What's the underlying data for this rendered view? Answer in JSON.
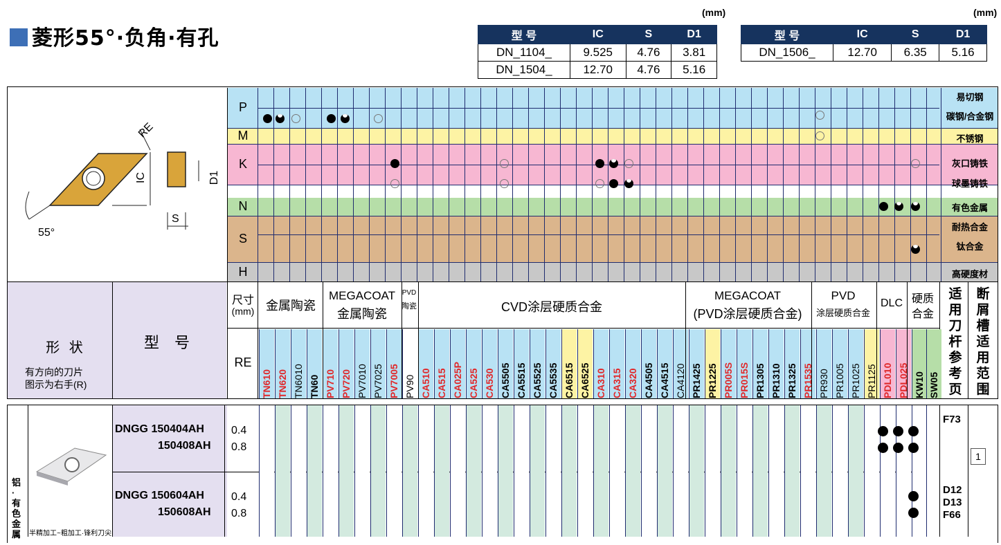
{
  "title": "菱形55°·负角·有孔",
  "unit": "(mm)",
  "spec_left": {
    "headers": [
      "型 号",
      "IC",
      "S",
      "D1"
    ],
    "rows": [
      [
        "DN_1104_",
        "9.525",
        "4.76",
        "3.81"
      ],
      [
        "DN_1504_",
        "12.70",
        "4.76",
        "5.16"
      ]
    ]
  },
  "spec_right": {
    "headers": [
      "型 号",
      "IC",
      "S",
      "D1"
    ],
    "rows": [
      [
        "DN_1506_",
        "12.70",
        "6.35",
        "5.16"
      ]
    ]
  },
  "diagram": {
    "re": "RE",
    "ic": "IC",
    "d1": "D1",
    "s": "S",
    "angle": "55°"
  },
  "materials": [
    {
      "letter": "P",
      "labels": [
        "易切钢",
        "碳钢/合金钢"
      ],
      "color": "#b8e2f4"
    },
    {
      "letter": "M",
      "labels": [
        "不锈钢"
      ],
      "color": "#fdf3a4"
    },
    {
      "letter": "K",
      "labels": [
        "灰口铸铁",
        "球墨铸铁"
      ],
      "color": "#f7b7d2"
    },
    {
      "letter": "N",
      "labels": [
        "有色金属"
      ],
      "color": "#b6dea8"
    },
    {
      "letter": "S",
      "labels": [
        "耐热合金",
        "钛合金"
      ],
      "color": "#dbb58c"
    },
    {
      "letter": "H",
      "labels": [
        "高硬度材"
      ],
      "color": "#c8c8c8"
    }
  ],
  "header": {
    "shape": "形 状",
    "shape_note1": "有方向的刀片",
    "shape_note2": "图示为右手(R)",
    "model": "型 号",
    "size": "尺寸(mm)",
    "size_l1": "尺寸",
    "size_l2": "(mm)",
    "re": "RE",
    "groups": [
      "金属陶瓷",
      "MEGACOAT 金属陶瓷",
      "PVD 陶瓷",
      "CVD涂层硬质合金",
      "MEGACOAT (PVD涂层硬质合金)",
      "PVD 涂层硬质合金",
      "DLC",
      "硬质合金"
    ],
    "g_cermet": "金属陶瓷",
    "g_mc1": "MEGACOAT",
    "g_mc2": "金属陶瓷",
    "g_pvd1": "PVD",
    "g_pvd2": "陶瓷",
    "g_cvd": "CVD涂层硬质合金",
    "g_mcp1": "MEGACOAT",
    "g_mcp2": "(PVD涂层硬质合金)",
    "g_pvdc1": "PVD",
    "g_pvdc2": "涂层硬质合金",
    "g_dlc": "DLC",
    "g_hm1": "硬质",
    "g_hm2": "合金",
    "holder": "适用刀杆参考页",
    "breaker": "断屑槽适用范围"
  },
  "grades": [
    "TN610",
    "TN620",
    "TN6010",
    "TN60",
    "PV710",
    "PV720",
    "PV7010",
    "PV7025",
    "PV7005",
    "PV90",
    "CA510",
    "CA515",
    "CA025P",
    "CA525",
    "CA530",
    "CA5505",
    "CA5515",
    "CA5525",
    "CA5535",
    "CA6515",
    "CA6525",
    "CA310",
    "CA315",
    "CA320",
    "CA4505",
    "CA4515",
    "CA4120",
    "PR1425",
    "PR1225",
    "PR005S",
    "PR015S",
    "PR1305",
    "PR1310",
    "PR1325",
    "PR1535",
    "PR930",
    "PR1005",
    "PR1025",
    "PR1125",
    "PDL010",
    "PDL025",
    "KW10",
    "SW05"
  ],
  "grade_red": [
    0,
    1,
    4,
    5,
    8,
    10,
    11,
    12,
    13,
    14,
    21,
    22,
    23,
    29,
    30,
    34,
    39,
    40
  ],
  "grade_bold": [
    0,
    1,
    3,
    4,
    5,
    8,
    10,
    11,
    12,
    13,
    14,
    15,
    16,
    17,
    18,
    19,
    20,
    21,
    22,
    23,
    24,
    25,
    27,
    28,
    29,
    30,
    31,
    32,
    33,
    34,
    39,
    40,
    41,
    42
  ],
  "section_label": "铝·有色金属",
  "section_note": "半精加工~粗加工·锋利刀尖",
  "rows": [
    {
      "model1": "DNGG 150404AH",
      "model2": "150408AH",
      "re1": "0.4",
      "re2": "0.8",
      "holder": "F73",
      "page": "1"
    },
    {
      "model1": "DNGG 150604AH",
      "model2": "150608AH",
      "re1": "0.4",
      "re2": "0.8",
      "holder": [
        "D12",
        "D13",
        "F66"
      ]
    }
  ],
  "colors": {
    "accent": "#3d6fb6",
    "navy": "#16335e",
    "lavender": "#e4dff0",
    "green": "#d3eadf"
  }
}
